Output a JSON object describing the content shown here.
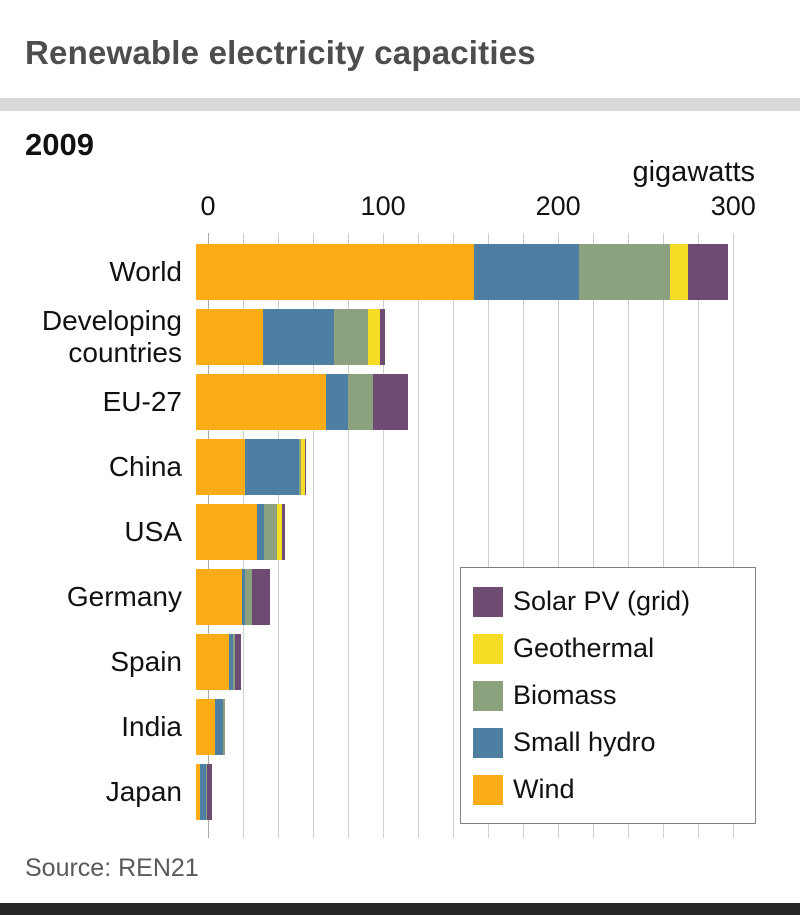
{
  "title": "Renewable electricity capacities",
  "source": "Source: REN21",
  "chart_data": {
    "type": "bar",
    "orientation": "horizontal",
    "stacked": true,
    "subtitle": "2009",
    "xlabel": "gigawatts",
    "xlim": [
      0,
      313
    ],
    "xticks": [
      0,
      100,
      200,
      300
    ],
    "gridline_step": 20,
    "grid": true,
    "categories": [
      "World",
      "Developing countries",
      "EU-27",
      "China",
      "USA",
      "Germany",
      "Spain",
      "India",
      "Japan"
    ],
    "series": [
      {
        "name": "Wind",
        "color": "#FBAC17",
        "values": [
          159,
          38,
          74,
          28,
          35,
          26,
          19,
          11,
          2
        ]
      },
      {
        "name": "Small hydro",
        "color": "#4F7EA3",
        "values": [
          60,
          41,
          13,
          31,
          4,
          2,
          2,
          4.5,
          3.5
        ]
      },
      {
        "name": "Biomass",
        "color": "#8CA17E",
        "values": [
          52,
          19,
          14,
          1,
          7,
          4,
          1,
          1,
          0.5
        ]
      },
      {
        "name": "Geothermal",
        "color": "#F7DC26",
        "values": [
          10,
          7,
          0,
          2,
          3,
          0,
          0,
          0,
          0.5
        ]
      },
      {
        "name": "Solar PV (grid)",
        "color": "#6D4B72",
        "values": [
          23,
          3,
          20,
          1,
          2,
          10,
          3.5,
          0,
          2.6
        ]
      }
    ],
    "legend": {
      "position": "bottom-right",
      "entries": [
        "Solar PV (grid)",
        "Geothermal",
        "Biomass",
        "Small hydro",
        "Wind"
      ]
    }
  }
}
